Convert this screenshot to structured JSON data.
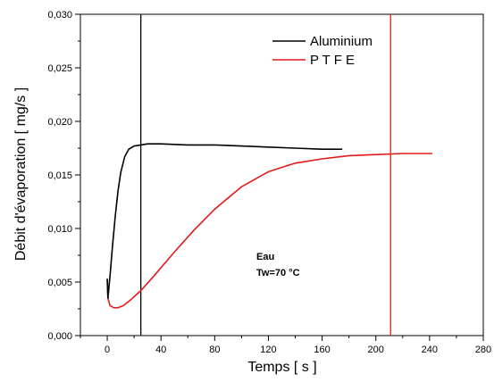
{
  "chart_data": {
    "type": "line",
    "xlabel": "Temps [ s ]",
    "ylabel": "Débit d'évaporation  [ mg/s ]",
    "xlim": [
      -20,
      280
    ],
    "ylim": [
      0,
      0.03
    ],
    "x_ticks": [
      0,
      40,
      80,
      120,
      160,
      200,
      240,
      280
    ],
    "y_ticks": [
      "0,000",
      "0,005",
      "0,010",
      "0,015",
      "0,020",
      "0,025",
      "0,030"
    ],
    "y_tick_values": [
      0,
      0.005,
      0.01,
      0.015,
      0.02,
      0.025,
      0.03
    ],
    "grid": false,
    "legend_position": "top-right",
    "series": [
      {
        "name": "Aluminium",
        "color": "#000000",
        "x": [
          0,
          0.5,
          2,
          4,
          6,
          8,
          10,
          13,
          16,
          20,
          25,
          30,
          40,
          60,
          80,
          100,
          120,
          140,
          160,
          175
        ],
        "y": [
          0.0053,
          0.0035,
          0.0055,
          0.0085,
          0.0112,
          0.0135,
          0.0152,
          0.0167,
          0.0174,
          0.0177,
          0.0178,
          0.0179,
          0.0179,
          0.0178,
          0.0178,
          0.0177,
          0.0176,
          0.0175,
          0.0174,
          0.0174
        ]
      },
      {
        "name": "P T F E",
        "color": "#e3191b",
        "x": [
          0,
          0.5,
          2,
          5,
          8,
          12,
          18,
          25,
          35,
          50,
          65,
          80,
          100,
          120,
          140,
          160,
          180,
          200,
          220,
          242
        ],
        "y": [
          0.0053,
          0.0035,
          0.0028,
          0.0026,
          0.0026,
          0.0028,
          0.0034,
          0.0042,
          0.0056,
          0.0078,
          0.0099,
          0.0118,
          0.0139,
          0.0153,
          0.0161,
          0.0165,
          0.0168,
          0.0169,
          0.017,
          0.017
        ]
      }
    ],
    "vertical_lines": [
      {
        "x": 25,
        "color": "#000000"
      },
      {
        "x": 211,
        "color": "#e3191b"
      }
    ],
    "annotations": [
      "Eau",
      "Tw=70 °C"
    ]
  }
}
